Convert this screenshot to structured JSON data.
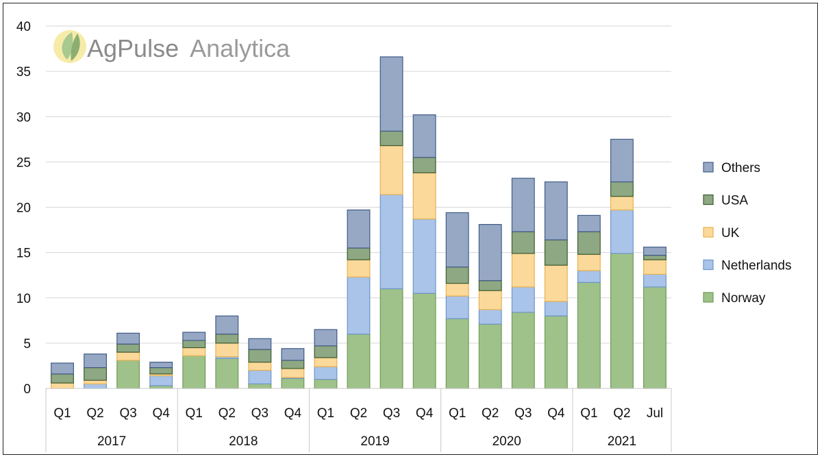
{
  "watermark": {
    "brand_bold": "AgPulse",
    "brand_light": "Analytica"
  },
  "chart_data": {
    "type": "bar",
    "stacked": true,
    "years": [
      {
        "label": "2017",
        "quarters": [
          "Q1",
          "Q2",
          "Q3",
          "Q4"
        ]
      },
      {
        "label": "2018",
        "quarters": [
          "Q1",
          "Q2",
          "Q3",
          "Q4"
        ]
      },
      {
        "label": "2019",
        "quarters": [
          "Q1",
          "Q2",
          "Q3",
          "Q4"
        ]
      },
      {
        "label": "2020",
        "quarters": [
          "Q1",
          "Q2",
          "Q3",
          "Q4"
        ]
      },
      {
        "label": "2021",
        "quarters": [
          "Q1",
          "Q2",
          "Jul"
        ]
      }
    ],
    "ylim": [
      0,
      40
    ],
    "yticks": [
      0,
      5,
      10,
      15,
      20,
      25,
      30,
      35,
      40
    ],
    "grid": true,
    "legend_position": "right",
    "series": [
      {
        "name": "Norway",
        "color": "#9fc28a",
        "edge": "#6f9a55",
        "values": [
          0.0,
          0.0,
          3.1,
          0.3,
          3.6,
          3.3,
          0.5,
          1.1,
          1.0,
          6.0,
          11.0,
          10.5,
          7.7,
          7.1,
          8.4,
          8.0,
          11.7,
          14.9,
          11.2
        ]
      },
      {
        "name": "Netherlands",
        "color": "#a9c4e8",
        "edge": "#6d95c9",
        "values": [
          0.0,
          0.5,
          0.0,
          1.1,
          0.0,
          0.2,
          1.5,
          0.1,
          1.4,
          6.3,
          10.4,
          8.2,
          2.5,
          1.6,
          2.8,
          1.6,
          1.3,
          4.8,
          1.4
        ]
      },
      {
        "name": "UK",
        "color": "#fbd99a",
        "edge": "#e8b04f",
        "values": [
          0.6,
          0.4,
          0.9,
          0.2,
          0.9,
          1.5,
          0.9,
          1.0,
          1.0,
          1.9,
          5.4,
          5.1,
          1.4,
          2.1,
          3.7,
          4.0,
          1.8,
          1.5,
          1.6
        ]
      },
      {
        "name": "USA",
        "color": "#8da882",
        "edge": "#3d5a32",
        "values": [
          1.0,
          1.4,
          0.9,
          0.7,
          0.8,
          1.0,
          1.4,
          0.9,
          1.3,
          1.3,
          1.6,
          1.7,
          1.8,
          1.1,
          2.4,
          2.8,
          2.5,
          1.6,
          0.5
        ]
      },
      {
        "name": "Others",
        "color": "#97a8c4",
        "edge": "#3f5a86",
        "values": [
          1.2,
          1.5,
          1.2,
          0.6,
          0.9,
          2.0,
          1.2,
          1.3,
          1.8,
          4.2,
          8.2,
          4.7,
          6.0,
          6.2,
          5.9,
          6.4,
          1.8,
          4.7,
          0.9
        ]
      }
    ]
  }
}
